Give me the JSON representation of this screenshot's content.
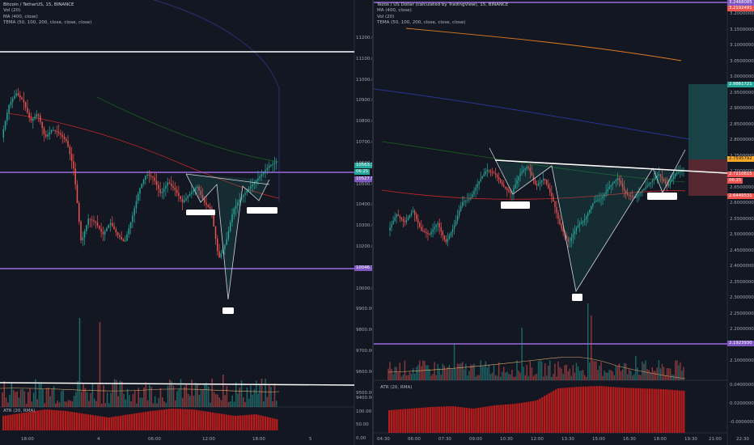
{
  "left": {
    "title": "Bitcoin / TetherUS, 15, BINANCE",
    "indicators": [
      "Vol (20)",
      "MA (400, close)",
      "TEMA (50, 100, 200, close, close, close)"
    ],
    "atr_label": "ATR (20, RMA)",
    "price_ticks": [
      "11200.00",
      "11100.00",
      "11000.00",
      "10900.00",
      "10800.00",
      "10700.00",
      "10600.00",
      "10500.00",
      "10400.00",
      "10300.00",
      "10200.00",
      "10100.00",
      "10000.00",
      "9900.00",
      "9800.00",
      "9700.00",
      "9600.00",
      "9500.00"
    ],
    "atr_ticks": [
      "9400.00",
      "100.00",
      "50.00",
      "0.00"
    ],
    "time_ticks": [
      "18:00",
      "4",
      "06:00",
      "12:00",
      "18:00",
      "5"
    ],
    "tags": {
      "price": "10563.38",
      "countdown": "06:25",
      "resistance": "10527.58",
      "support": "10046.78"
    },
    "colors": {
      "up": "#26a69a",
      "down": "#ef5350",
      "level": "#9c6ade"
    }
  },
  "right": {
    "title": "Tezos / US Dollar (calculated by TradingView), 15, BINANCE",
    "indicators": [
      "MA (400, close)",
      "Vol (20)",
      "TEMA (50, 100, 200, close, close, close)"
    ],
    "atr_label": "ATR (20, RMA)",
    "price_ticks": [
      "3.2000000",
      "3.1500000",
      "3.1000000",
      "3.0500000",
      "3.0000000",
      "2.9500000",
      "2.9000000",
      "2.8500000",
      "2.8000000",
      "2.7500000",
      "2.7000000",
      "2.6500000",
      "2.6000000",
      "2.5500000",
      "2.5000000",
      "2.4500000",
      "2.4000000",
      "2.3500000",
      "2.3000000",
      "2.2500000",
      "2.2000000",
      "2.1500000",
      "2.1000000"
    ],
    "atr_ticks": [
      "0.0400000",
      "0.0200000",
      "-0.0000000"
    ],
    "time_ticks": [
      "04:30",
      "06:00",
      "07:30",
      "09:00",
      "10:30",
      "12:00",
      "13:30",
      "15:00",
      "16:30",
      "18:00",
      "19:30",
      "21:00",
      "22:30"
    ],
    "tags": {
      "top1": "3.2468085",
      "top2": "3.2192491",
      "target": "2.9861721",
      "entry": "2.7595792",
      "price": "2.7110615",
      "countdown": "06:25",
      "stop": "2.6449531",
      "support": "2.1923930"
    },
    "colors": {
      "up": "#26a69a",
      "down": "#ef5350",
      "level": "#9c6ade"
    }
  }
}
